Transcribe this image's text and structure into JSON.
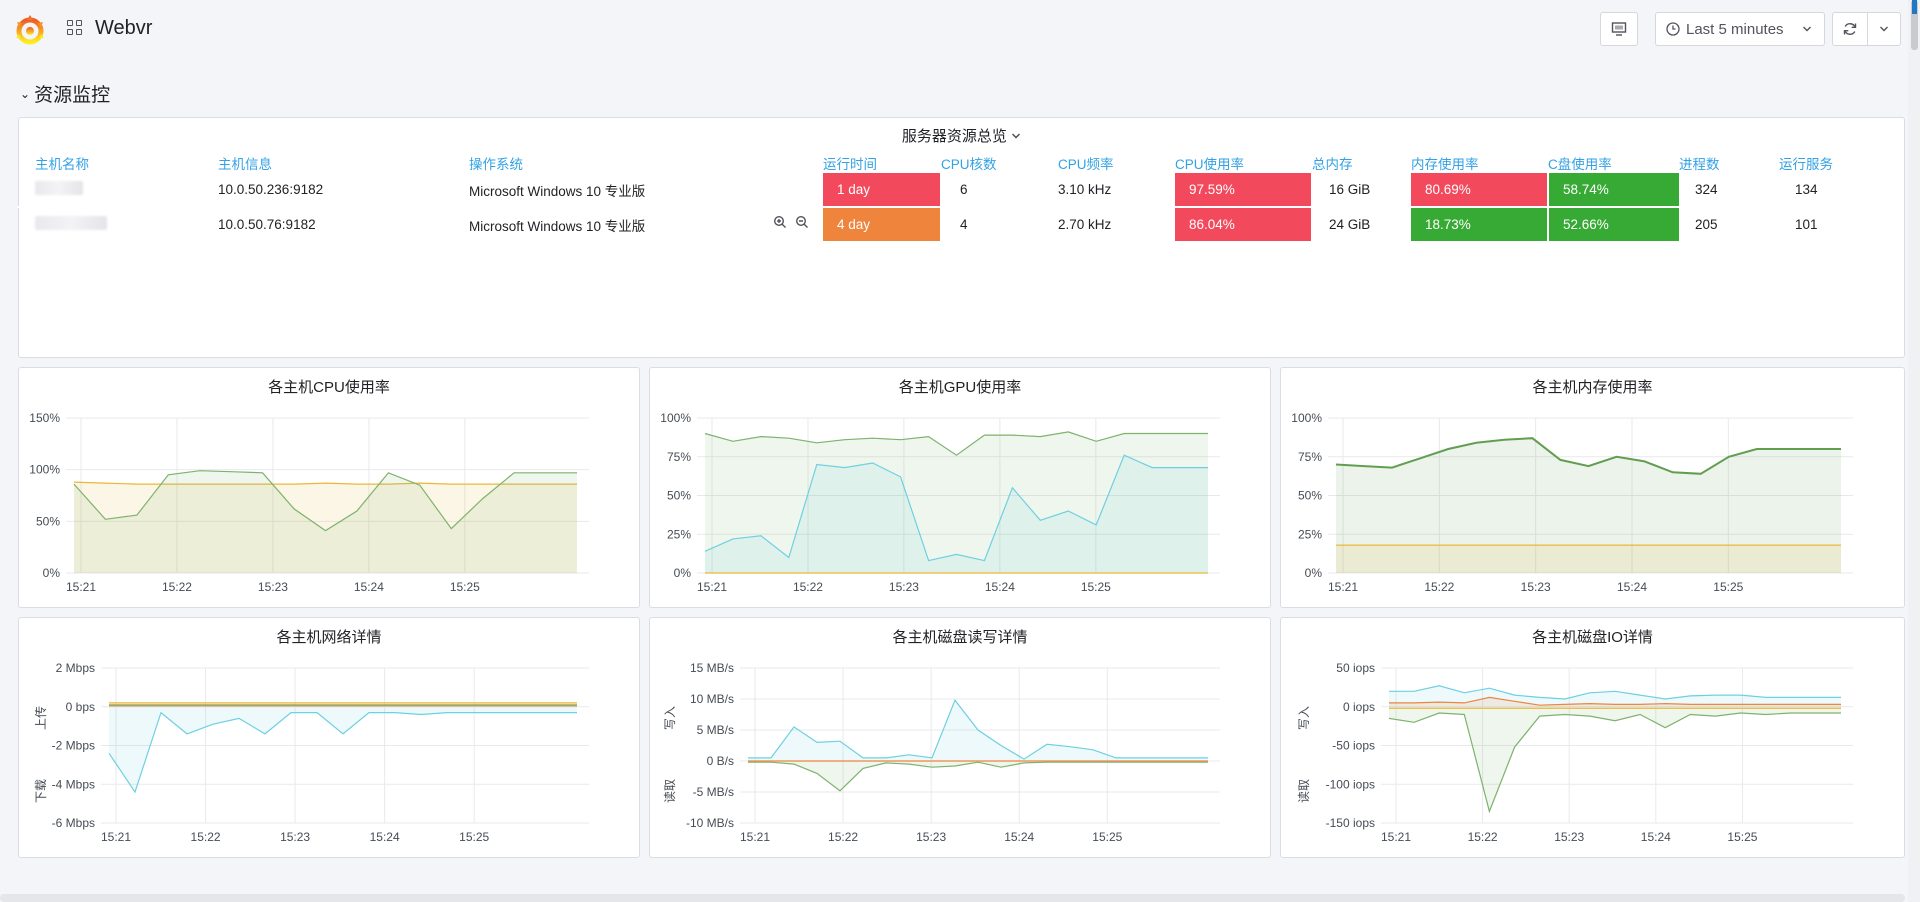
{
  "header": {
    "title": "Webvr",
    "time_range": "Last 5 minutes"
  },
  "row": {
    "title": "资源监控"
  },
  "table_panel": {
    "title": "服务器资源总览",
    "columns": [
      "主机名称",
      "主机信息",
      "操作系统",
      "运行时间",
      "CPU核数",
      "CPU频率",
      "CPU使用率",
      "总内存",
      "内存使用率",
      "C盘使用率",
      "进程数",
      "运行服务"
    ],
    "rows": [
      {
        "host_info": "10.0.50.236:9182",
        "os": "Microsoft Windows 10 专业版",
        "uptime": "1 day",
        "cpu_cores": "6",
        "cpu_freq": "3.10 kHz",
        "cpu_usage": "97.59%",
        "mem_total": "16 GiB",
        "mem_usage": "80.69%",
        "c_usage": "58.74%",
        "procs": "324",
        "services": "134"
      },
      {
        "host_info": "10.0.50.76:9182",
        "os": "Microsoft Windows 10 专业版",
        "uptime": "4 day",
        "cpu_cores": "4",
        "cpu_freq": "2.70 kHz",
        "cpu_usage": "86.04%",
        "mem_total": "24 GiB",
        "mem_usage": "18.73%",
        "c_usage": "52.66%",
        "procs": "205",
        "services": "101"
      }
    ],
    "colors": {
      "red": "#f2495c",
      "orange": "#ef843c",
      "green": "#37a935"
    }
  },
  "chart_data": [
    {
      "type": "area",
      "title": "各主机CPU使用率",
      "x_ticks": [
        "15:21",
        "15:22",
        "15:23",
        "15:24",
        "15:25"
      ],
      "y_ticks": [
        "0%",
        "50%",
        "100%",
        "150%"
      ],
      "ylim": [
        0,
        150
      ],
      "series": [
        {
          "color": "#eab839",
          "values": [
            88,
            87,
            86,
            86,
            86,
            86,
            86,
            86,
            87,
            86,
            86,
            87,
            86,
            86,
            86,
            86,
            86
          ]
        },
        {
          "color": "#7eb26d",
          "values": [
            86,
            52,
            56,
            95,
            99,
            98,
            97,
            62,
            41,
            60,
            97,
            85,
            43,
            72,
            97,
            97,
            97
          ]
        }
      ]
    },
    {
      "type": "area",
      "title": "各主机GPU使用率",
      "x_ticks": [
        "15:21",
        "15:22",
        "15:23",
        "15:24",
        "15:25"
      ],
      "y_ticks": [
        "0%",
        "25%",
        "50%",
        "75%",
        "100%"
      ],
      "ylim": [
        0,
        100
      ],
      "series": [
        {
          "color": "#7eb26d",
          "values": [
            90,
            85,
            88,
            87,
            84,
            86,
            87,
            86,
            88,
            76,
            89,
            89,
            88,
            91,
            85,
            90,
            90,
            90,
            90
          ]
        },
        {
          "color": "#6ed0e0",
          "values": [
            14,
            22,
            24,
            10,
            70,
            68,
            71,
            62,
            8,
            12,
            8,
            55,
            34,
            40,
            31,
            76,
            68,
            68,
            68
          ]
        },
        {
          "color": "#eab839",
          "values": [
            0,
            0,
            0,
            0,
            0,
            0,
            0,
            0,
            0,
            0,
            0,
            0,
            0,
            0,
            0,
            0,
            0,
            0,
            0
          ]
        }
      ]
    },
    {
      "type": "area",
      "title": "各主机内存使用率",
      "x_ticks": [
        "15:21",
        "15:22",
        "15:23",
        "15:24",
        "15:25"
      ],
      "y_ticks": [
        "0%",
        "25%",
        "50%",
        "75%",
        "100%"
      ],
      "ylim": [
        0,
        100
      ],
      "series": [
        {
          "color": "#629e51",
          "values": [
            70,
            69,
            68,
            74,
            80,
            84,
            86,
            87,
            73,
            69,
            75,
            72,
            65,
            64,
            75,
            80,
            80,
            80,
            80
          ]
        },
        {
          "color": "#eab839",
          "values": [
            18,
            18,
            18,
            18,
            18,
            18,
            18,
            18,
            18,
            18,
            18,
            18,
            18,
            18,
            18,
            18,
            18,
            18,
            18
          ]
        }
      ]
    },
    {
      "type": "area",
      "title": "各主机网络详情",
      "x_ticks": [
        "15:21",
        "15:22",
        "15:23",
        "15:24",
        "15:25"
      ],
      "y_ticks": [
        "-6 Mbps",
        "-4 Mbps",
        "-2 Mbps",
        "0 bps",
        "2 Mbps"
      ],
      "ylim": [
        -6,
        2
      ],
      "upper_label": "上传",
      "lower_label": "下载",
      "series": [
        {
          "color": "#6ed0e0",
          "values": [
            -2.4,
            -4.4,
            -0.3,
            -1.4,
            -0.9,
            -0.6,
            -1.4,
            -0.3,
            -0.3,
            -1.4,
            -0.3,
            -0.3,
            -0.4,
            -0.3,
            -0.3,
            -0.3,
            -0.3,
            -0.3,
            -0.3
          ]
        },
        {
          "color": "#eab839",
          "values": [
            0.2,
            0.2,
            0.2,
            0.2,
            0.2,
            0.2,
            0.2,
            0.2,
            0.2,
            0.2,
            0.2,
            0.2,
            0.2,
            0.2,
            0.2,
            0.2,
            0.2,
            0.2,
            0.2
          ]
        },
        {
          "color": "#ef843c",
          "values": [
            0.05,
            0.05,
            0.05,
            0.05,
            0.05,
            0.05,
            0.05,
            0.05,
            0.05,
            0.05,
            0.05,
            0.05,
            0.05,
            0.05,
            0.05,
            0.05,
            0.05,
            0.05,
            0.05
          ]
        },
        {
          "color": "#7eb26d",
          "values": [
            0.1,
            0.1,
            0.1,
            0.1,
            0.1,
            0.1,
            0.1,
            0.1,
            0.1,
            0.1,
            0.1,
            0.1,
            0.1,
            0.1,
            0.1,
            0.1,
            0.1,
            0.1,
            0.1
          ]
        }
      ]
    },
    {
      "type": "area",
      "title": "各主机磁盘读写详情",
      "x_ticks": [
        "15:21",
        "15:22",
        "15:23",
        "15:24",
        "15:25"
      ],
      "y_ticks": [
        "-10 MB/s",
        "-5 MB/s",
        "0 B/s",
        "5 MB/s",
        "10 MB/s",
        "15 MB/s"
      ],
      "ylim": [
        -10,
        15
      ],
      "upper_label": "写入",
      "lower_label": "读取",
      "series": [
        {
          "color": "#6ed0e0",
          "values": [
            0.5,
            0.5,
            5.5,
            3.0,
            3.2,
            0.5,
            0.5,
            1.0,
            0.5,
            9.8,
            5.0,
            2.5,
            0.3,
            2.7,
            2.3,
            1.8,
            0.5,
            0.5,
            0.5,
            0.5,
            0.5
          ]
        },
        {
          "color": "#7eb26d",
          "values": [
            -0.2,
            -0.2,
            -0.5,
            -2.0,
            -4.8,
            -1.2,
            -0.3,
            -0.5,
            -1.0,
            -0.8,
            -0.2,
            -1.0,
            -0.3,
            -0.2,
            -0.2,
            -0.2,
            -0.2,
            -0.2,
            -0.2,
            -0.2,
            -0.2
          ]
        },
        {
          "color": "#ef843c",
          "values": [
            0,
            0,
            0,
            0,
            0,
            0,
            0,
            0,
            0,
            0,
            0,
            0,
            0,
            0,
            0,
            0,
            0,
            0,
            0,
            0,
            0
          ]
        }
      ]
    },
    {
      "type": "area",
      "title": "各主机磁盘IO详情",
      "x_ticks": [
        "15:21",
        "15:22",
        "15:23",
        "15:24",
        "15:25"
      ],
      "y_ticks": [
        "-150 iops",
        "-100 iops",
        "-50 iops",
        "0 iops",
        "50 iops"
      ],
      "ylim": [
        -150,
        50
      ],
      "upper_label": "写入",
      "lower_label": "读取",
      "series": [
        {
          "color": "#6ed0e0",
          "values": [
            20,
            20,
            27,
            18,
            24,
            15,
            12,
            10,
            18,
            20,
            15,
            10,
            14,
            15,
            15,
            12,
            12,
            12,
            12
          ]
        },
        {
          "color": "#7eb26d",
          "values": [
            -15,
            -20,
            -8,
            -10,
            -135,
            -52,
            -12,
            -10,
            -12,
            -18,
            -10,
            -27,
            -10,
            -12,
            -8,
            -10,
            -8,
            -8,
            -8
          ]
        },
        {
          "color": "#ef843c",
          "values": [
            5,
            5,
            6,
            5,
            12,
            7,
            2,
            3,
            4,
            3,
            3,
            4,
            3,
            3,
            3,
            3,
            3,
            3,
            3
          ]
        },
        {
          "color": "#eab839",
          "values": [
            -2,
            -2,
            -2,
            -2,
            -2,
            -2,
            -2,
            -2,
            -2,
            -2,
            -2,
            -2,
            -2,
            -2,
            -2,
            -2,
            -2,
            -2,
            -2
          ]
        }
      ]
    }
  ]
}
